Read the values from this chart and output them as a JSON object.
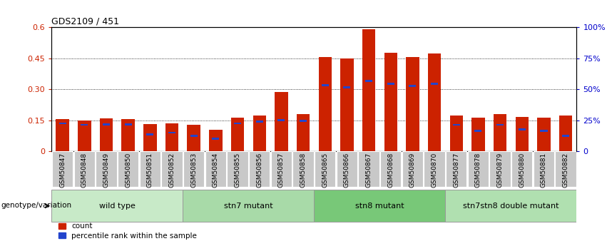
{
  "title": "GDS2109 / 451",
  "samples": [
    "GSM50847",
    "GSM50848",
    "GSM50849",
    "GSM50850",
    "GSM50851",
    "GSM50852",
    "GSM50853",
    "GSM50854",
    "GSM50855",
    "GSM50856",
    "GSM50857",
    "GSM50858",
    "GSM50865",
    "GSM50866",
    "GSM50867",
    "GSM50868",
    "GSM50869",
    "GSM50870",
    "GSM50877",
    "GSM50878",
    "GSM50879",
    "GSM50880",
    "GSM50881",
    "GSM50882"
  ],
  "count_values": [
    0.155,
    0.15,
    0.158,
    0.157,
    0.132,
    0.134,
    0.127,
    0.105,
    0.163,
    0.172,
    0.285,
    0.178,
    0.455,
    0.45,
    0.59,
    0.477,
    0.455,
    0.473,
    0.172,
    0.163,
    0.178,
    0.165,
    0.163,
    0.172
  ],
  "percentile_values": [
    0.135,
    0.128,
    0.13,
    0.13,
    0.082,
    0.09,
    0.075,
    0.06,
    0.135,
    0.145,
    0.15,
    0.148,
    0.32,
    0.31,
    0.34,
    0.325,
    0.315,
    0.325,
    0.128,
    0.1,
    0.128,
    0.105,
    0.1,
    0.075
  ],
  "groups": [
    {
      "label": "wild type",
      "start": 0,
      "end": 6,
      "color": "#c8eac8"
    },
    {
      "label": "stn7 mutant",
      "start": 6,
      "end": 12,
      "color": "#a8daa8"
    },
    {
      "label": "stn8 mutant",
      "start": 12,
      "end": 18,
      "color": "#78c878"
    },
    {
      "label": "stn7stn8 double mutant",
      "start": 18,
      "end": 24,
      "color": "#b0e0b0"
    }
  ],
  "ylim_left": [
    0,
    0.6
  ],
  "ylim_right": [
    0,
    100
  ],
  "yticks_left": [
    0,
    0.15,
    0.3,
    0.45,
    0.6
  ],
  "yticks_right": [
    0,
    25,
    50,
    75,
    100
  ],
  "ytick_labels_left": [
    "0",
    "0.15",
    "0.30",
    "0.45",
    "0.6"
  ],
  "ytick_labels_right": [
    "0",
    "25%",
    "50%",
    "75%",
    "100%"
  ],
  "bar_color_red": "#cc2200",
  "bar_color_blue": "#2244cc",
  "left_ylabel_color": "#cc2200",
  "right_ylabel_color": "#0000cc",
  "bg_xticklabel": "#c8c8c8",
  "legend_count": "count",
  "legend_percentile": "percentile rank within the sample",
  "genotype_label": "genotype/variation"
}
